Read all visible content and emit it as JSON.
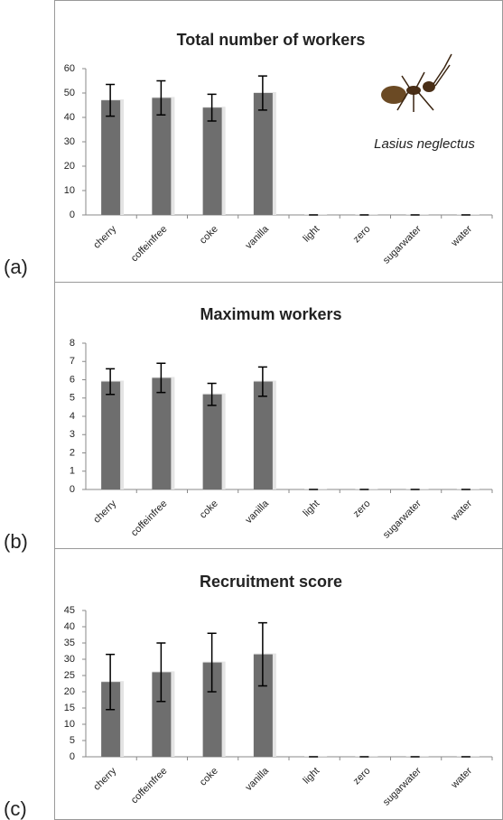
{
  "chart_data": [
    {
      "type": "bar",
      "label": "(a)",
      "title": "Total number of workers",
      "annotation": "Lasius neglectus",
      "categories": [
        "cherry",
        "coffeinfree",
        "coke",
        "vanilla",
        "light",
        "zero",
        "sugarwater",
        "water"
      ],
      "values": [
        47,
        48,
        44,
        50,
        0,
        0,
        0,
        0
      ],
      "errors": [
        6.5,
        7,
        5.5,
        7,
        0,
        0,
        0,
        0
      ],
      "color": "#6e6e6e",
      "ylim": [
        0,
        60
      ],
      "yticks": [
        0,
        10,
        20,
        30,
        40,
        50,
        60
      ]
    },
    {
      "type": "bar",
      "label": "(b)",
      "title": "Maximum workers",
      "categories": [
        "cherry",
        "coffeinfree",
        "coke",
        "vanilla",
        "light",
        "zero",
        "sugarwater",
        "water"
      ],
      "values": [
        5.9,
        6.1,
        5.2,
        5.9,
        0,
        0,
        0,
        0
      ],
      "errors": [
        0.7,
        0.8,
        0.6,
        0.8,
        0,
        0,
        0,
        0
      ],
      "color": "#6e6e6e",
      "ylim": [
        0,
        8
      ],
      "yticks": [
        0,
        1,
        2,
        3,
        4,
        5,
        6,
        7,
        8
      ]
    },
    {
      "type": "bar",
      "label": "(c)",
      "title": "Recruitment score",
      "categories": [
        "cherry",
        "coffeinfree",
        "coke",
        "vanilla",
        "light",
        "zero",
        "sugarwater",
        "water"
      ],
      "values": [
        23,
        26,
        29,
        31.5,
        0,
        0,
        0,
        0
      ],
      "errors": [
        8.5,
        9,
        9,
        9.7,
        0,
        0,
        0,
        0
      ],
      "color": "#6e6e6e",
      "ylim": [
        0,
        45
      ],
      "yticks": [
        0,
        5,
        10,
        15,
        20,
        25,
        30,
        35,
        40,
        45
      ]
    }
  ]
}
